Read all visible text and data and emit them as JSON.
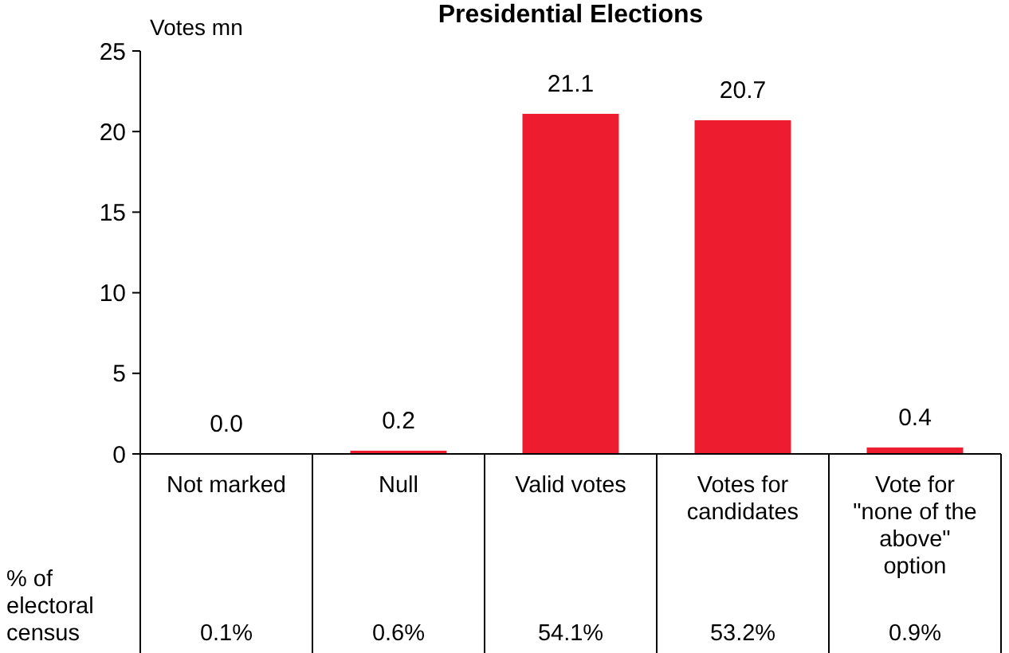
{
  "chart_data": {
    "type": "bar",
    "title": "Presidential Elections",
    "ylabel": "Votes mn",
    "categories": [
      "Not marked",
      "Null",
      "Valid votes",
      "Votes for candidates",
      "Vote for \"none of the above\" option"
    ],
    "values": [
      0.0,
      0.2,
      21.1,
      20.7,
      0.4
    ],
    "color": "#ed1c2e",
    "value_labels": [
      "0.0",
      "0.2",
      "21.1",
      "20.7",
      "0.4"
    ],
    "ylim": [
      0,
      25
    ],
    "yticks": [
      0,
      5,
      10,
      15,
      20,
      25
    ],
    "grid": false,
    "annotations": [
      "% of electoral census",
      "0.1%",
      "0.6%",
      "54.1%",
      "53.2%",
      "0.9%"
    ]
  }
}
